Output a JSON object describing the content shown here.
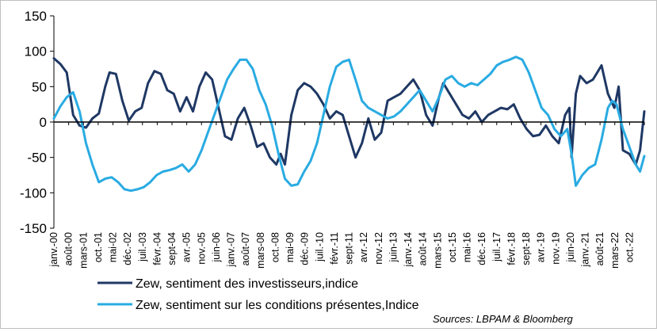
{
  "chart_data": {
    "type": "line",
    "title": "",
    "xlabel": "",
    "ylabel": "",
    "ylim": [
      -150,
      150
    ],
    "yticks": [
      -150,
      -100,
      -50,
      0,
      50,
      100,
      150
    ],
    "x_start": "2000-01",
    "x_end": "2023-01",
    "x_tick_labels": [
      "janv.-00",
      "août-00",
      "mars-01",
      "oct.-01",
      "mai-02",
      "déc.-02",
      "juil.-03",
      "févr.-04",
      "sept-04",
      "avr.-05",
      "nov.-05",
      "juin-06",
      "janv.-07",
      "août-07",
      "mars-08",
      "oct.-08",
      "mai-09",
      "déc.-09",
      "juil.-10",
      "févr.-11",
      "sept-11",
      "avr.-12",
      "nov.-12",
      "juin-13",
      "janv.-14",
      "août-14",
      "mars-15",
      "oct.-15",
      "mai-16",
      "déc.-16",
      "juil.-17",
      "févr.-18",
      "sept-18",
      "avr.-19",
      "nov.-19",
      "juin-20",
      "janv.-21",
      "août-21",
      "mars-22",
      "oct.-22"
    ],
    "grid": false,
    "legend_position": "bottom",
    "series": [
      {
        "name": "Zew, sentiment des investisseurs,indice",
        "color": "#1f3864",
        "points": [
          [
            "2000-01",
            90
          ],
          [
            "2000-04",
            82
          ],
          [
            "2000-07",
            70
          ],
          [
            "2000-10",
            10
          ],
          [
            "2001-01",
            -5
          ],
          [
            "2001-04",
            -8
          ],
          [
            "2001-07",
            5
          ],
          [
            "2001-10",
            12
          ],
          [
            "2002-01",
            50
          ],
          [
            "2002-03",
            70
          ],
          [
            "2002-06",
            68
          ],
          [
            "2002-09",
            30
          ],
          [
            "2002-12",
            2
          ],
          [
            "2003-03",
            15
          ],
          [
            "2003-06",
            20
          ],
          [
            "2003-09",
            55
          ],
          [
            "2003-12",
            72
          ],
          [
            "2004-03",
            68
          ],
          [
            "2004-06",
            45
          ],
          [
            "2004-09",
            40
          ],
          [
            "2004-12",
            15
          ],
          [
            "2005-03",
            35
          ],
          [
            "2005-06",
            15
          ],
          [
            "2005-09",
            50
          ],
          [
            "2005-12",
            70
          ],
          [
            "2006-03",
            60
          ],
          [
            "2006-06",
            20
          ],
          [
            "2006-09",
            -20
          ],
          [
            "2006-12",
            -25
          ],
          [
            "2007-03",
            5
          ],
          [
            "2007-06",
            20
          ],
          [
            "2007-09",
            -5
          ],
          [
            "2007-12",
            -35
          ],
          [
            "2008-03",
            -30
          ],
          [
            "2008-06",
            -50
          ],
          [
            "2008-09",
            -60
          ],
          [
            "2008-11",
            -45
          ],
          [
            "2009-01",
            -60
          ],
          [
            "2009-04",
            10
          ],
          [
            "2009-07",
            45
          ],
          [
            "2009-10",
            55
          ],
          [
            "2010-01",
            50
          ],
          [
            "2010-04",
            40
          ],
          [
            "2010-07",
            25
          ],
          [
            "2010-10",
            5
          ],
          [
            "2011-01",
            15
          ],
          [
            "2011-04",
            10
          ],
          [
            "2011-07",
            -20
          ],
          [
            "2011-10",
            -50
          ],
          [
            "2012-01",
            -30
          ],
          [
            "2012-04",
            5
          ],
          [
            "2012-07",
            -25
          ],
          [
            "2012-10",
            -15
          ],
          [
            "2013-01",
            30
          ],
          [
            "2013-04",
            35
          ],
          [
            "2013-07",
            40
          ],
          [
            "2013-10",
            50
          ],
          [
            "2014-01",
            60
          ],
          [
            "2014-04",
            45
          ],
          [
            "2014-07",
            10
          ],
          [
            "2014-10",
            -5
          ],
          [
            "2015-01",
            35
          ],
          [
            "2015-03",
            55
          ],
          [
            "2015-06",
            40
          ],
          [
            "2015-09",
            25
          ],
          [
            "2015-12",
            10
          ],
          [
            "2016-03",
            5
          ],
          [
            "2016-06",
            15
          ],
          [
            "2016-09",
            0
          ],
          [
            "2016-12",
            10
          ],
          [
            "2017-03",
            15
          ],
          [
            "2017-06",
            20
          ],
          [
            "2017-09",
            18
          ],
          [
            "2017-12",
            25
          ],
          [
            "2018-03",
            5
          ],
          [
            "2018-06",
            -10
          ],
          [
            "2018-09",
            -20
          ],
          [
            "2018-12",
            -18
          ],
          [
            "2019-03",
            -5
          ],
          [
            "2019-06",
            -20
          ],
          [
            "2019-09",
            -30
          ],
          [
            "2019-12",
            10
          ],
          [
            "2020-02",
            20
          ],
          [
            "2020-03",
            -50
          ],
          [
            "2020-05",
            40
          ],
          [
            "2020-07",
            65
          ],
          [
            "2020-10",
            55
          ],
          [
            "2021-01",
            60
          ],
          [
            "2021-03",
            70
          ],
          [
            "2021-05",
            80
          ],
          [
            "2021-08",
            40
          ],
          [
            "2021-11",
            20
          ],
          [
            "2022-01",
            50
          ],
          [
            "2022-03",
            -40
          ],
          [
            "2022-06",
            -45
          ],
          [
            "2022-09",
            -60
          ],
          [
            "2022-11",
            -40
          ],
          [
            "2023-01",
            15
          ]
        ]
      },
      {
        "name": "Zew, sentiment sur les conditions présentes,Indice",
        "color": "#29abe2",
        "points": [
          [
            "2000-01",
            5
          ],
          [
            "2000-04",
            22
          ],
          [
            "2000-07",
            35
          ],
          [
            "2000-10",
            42
          ],
          [
            "2001-01",
            15
          ],
          [
            "2001-04",
            -30
          ],
          [
            "2001-07",
            -60
          ],
          [
            "2001-10",
            -85
          ],
          [
            "2002-01",
            -80
          ],
          [
            "2002-04",
            -78
          ],
          [
            "2002-07",
            -85
          ],
          [
            "2002-10",
            -95
          ],
          [
            "2003-01",
            -97
          ],
          [
            "2003-04",
            -95
          ],
          [
            "2003-07",
            -92
          ],
          [
            "2003-10",
            -85
          ],
          [
            "2004-01",
            -75
          ],
          [
            "2004-04",
            -70
          ],
          [
            "2004-07",
            -68
          ],
          [
            "2004-10",
            -65
          ],
          [
            "2005-01",
            -60
          ],
          [
            "2005-04",
            -70
          ],
          [
            "2005-07",
            -60
          ],
          [
            "2005-10",
            -40
          ],
          [
            "2006-01",
            -15
          ],
          [
            "2006-04",
            10
          ],
          [
            "2006-07",
            35
          ],
          [
            "2006-10",
            60
          ],
          [
            "2007-01",
            75
          ],
          [
            "2007-04",
            88
          ],
          [
            "2007-07",
            88
          ],
          [
            "2007-10",
            75
          ],
          [
            "2008-01",
            45
          ],
          [
            "2008-04",
            25
          ],
          [
            "2008-07",
            -5
          ],
          [
            "2008-10",
            -45
          ],
          [
            "2009-01",
            -80
          ],
          [
            "2009-04",
            -90
          ],
          [
            "2009-07",
            -88
          ],
          [
            "2009-10",
            -70
          ],
          [
            "2010-01",
            -55
          ],
          [
            "2010-04",
            -30
          ],
          [
            "2010-07",
            10
          ],
          [
            "2010-10",
            50
          ],
          [
            "2011-01",
            78
          ],
          [
            "2011-04",
            85
          ],
          [
            "2011-07",
            88
          ],
          [
            "2011-10",
            60
          ],
          [
            "2012-01",
            30
          ],
          [
            "2012-04",
            20
          ],
          [
            "2012-07",
            15
          ],
          [
            "2012-10",
            10
          ],
          [
            "2013-01",
            5
          ],
          [
            "2013-04",
            8
          ],
          [
            "2013-07",
            15
          ],
          [
            "2013-10",
            25
          ],
          [
            "2014-01",
            35
          ],
          [
            "2014-04",
            45
          ],
          [
            "2014-07",
            30
          ],
          [
            "2014-10",
            15
          ],
          [
            "2015-01",
            35
          ],
          [
            "2015-04",
            60
          ],
          [
            "2015-07",
            65
          ],
          [
            "2015-10",
            55
          ],
          [
            "2016-01",
            50
          ],
          [
            "2016-04",
            55
          ],
          [
            "2016-07",
            52
          ],
          [
            "2016-10",
            60
          ],
          [
            "2017-01",
            68
          ],
          [
            "2017-04",
            80
          ],
          [
            "2017-07",
            85
          ],
          [
            "2017-10",
            88
          ],
          [
            "2018-01",
            92
          ],
          [
            "2018-04",
            88
          ],
          [
            "2018-07",
            70
          ],
          [
            "2018-10",
            45
          ],
          [
            "2019-01",
            20
          ],
          [
            "2019-04",
            10
          ],
          [
            "2019-07",
            -10
          ],
          [
            "2019-10",
            -20
          ],
          [
            "2020-01",
            -10
          ],
          [
            "2020-03",
            -45
          ],
          [
            "2020-05",
            -90
          ],
          [
            "2020-08",
            -75
          ],
          [
            "2020-11",
            -65
          ],
          [
            "2021-02",
            -60
          ],
          [
            "2021-05",
            -25
          ],
          [
            "2021-08",
            20
          ],
          [
            "2021-10",
            30
          ],
          [
            "2021-12",
            25
          ],
          [
            "2022-03",
            -10
          ],
          [
            "2022-06",
            -35
          ],
          [
            "2022-09",
            -60
          ],
          [
            "2022-11",
            -70
          ],
          [
            "2023-01",
            -48
          ]
        ]
      }
    ],
    "source": "Sources: LBPAM & Bloomberg"
  }
}
